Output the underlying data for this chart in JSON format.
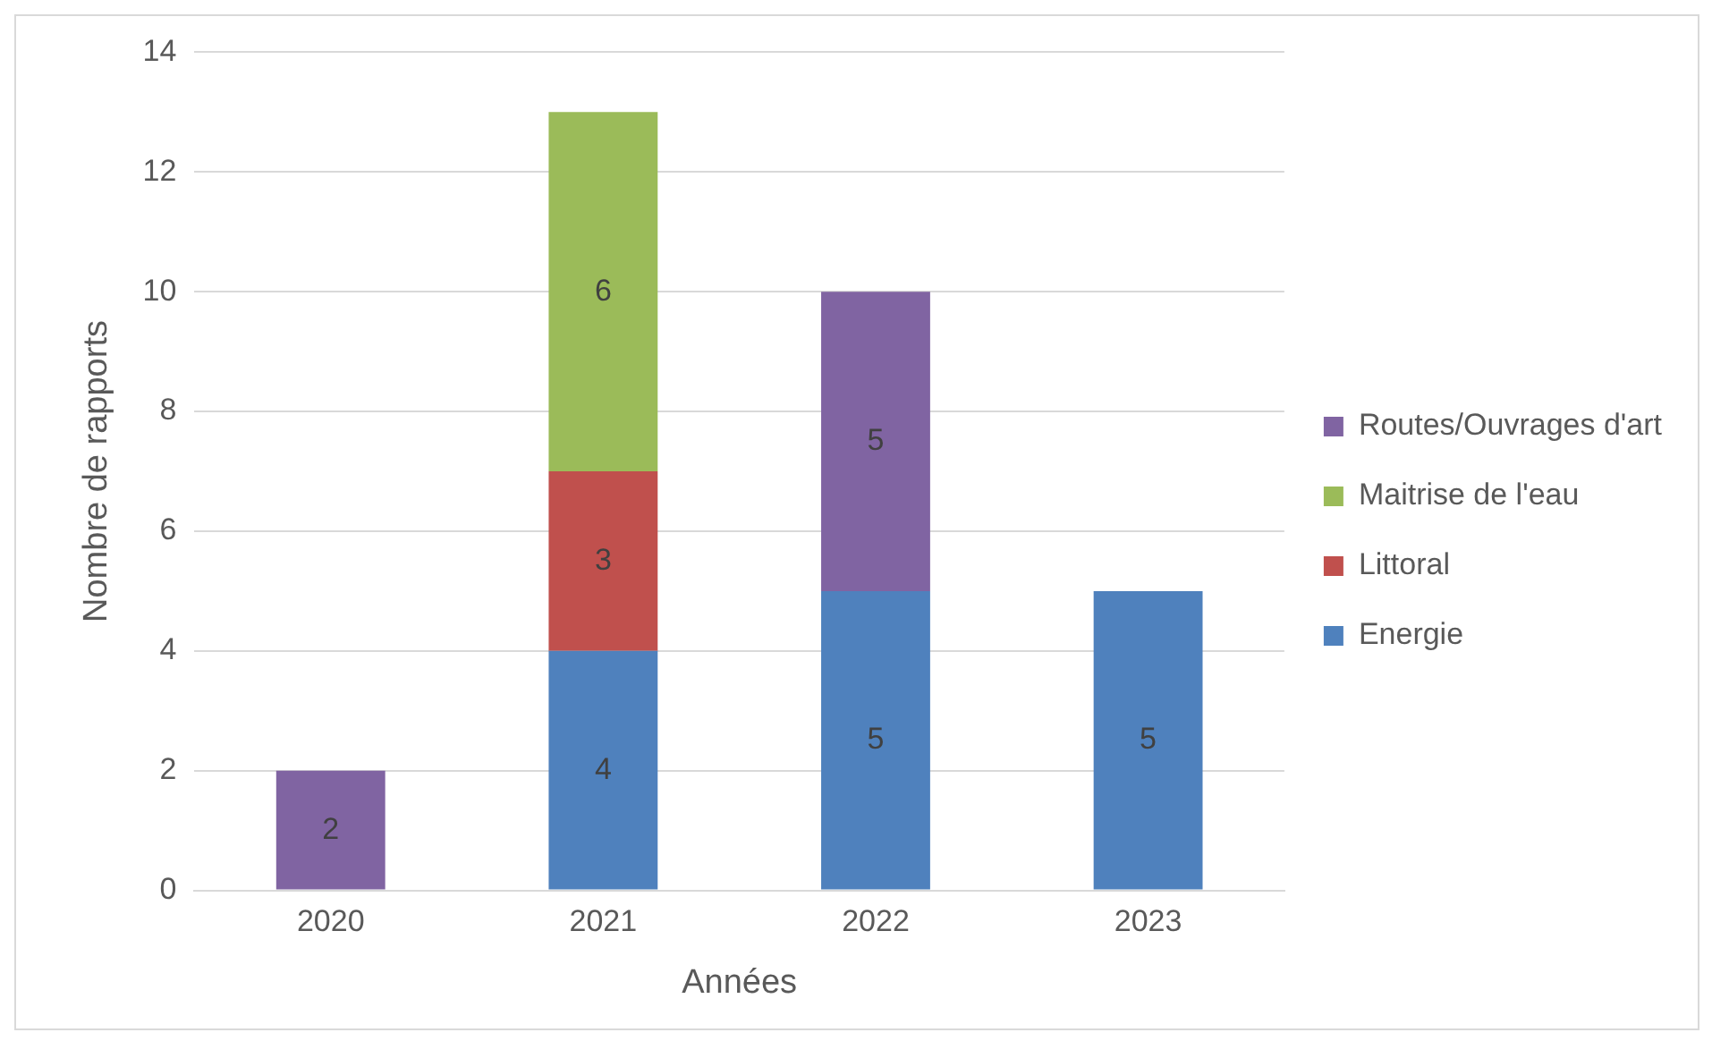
{
  "chart_data": {
    "type": "bar",
    "stacked": true,
    "xlabel": "Années",
    "ylabel": "Nombre de rapports",
    "categories": [
      "2020",
      "2021",
      "2022",
      "2023"
    ],
    "series": [
      {
        "name": "Energie",
        "color": "#4f81bd",
        "values": [
          null,
          4,
          5,
          5
        ]
      },
      {
        "name": "Littoral",
        "color": "#c0504d",
        "values": [
          null,
          3,
          null,
          null
        ]
      },
      {
        "name": "Maitrise de l'eau",
        "color": "#9bbb59",
        "values": [
          null,
          6,
          null,
          null
        ]
      },
      {
        "name": "Routes/Ouvrages d'art",
        "color": "#8064a2",
        "values": [
          2,
          null,
          5,
          null
        ]
      }
    ],
    "ylim": [
      0,
      14
    ],
    "yticks": [
      0,
      2,
      4,
      6,
      8,
      10,
      12,
      14
    ],
    "grid": "y",
    "legend": "right",
    "data_labels": true
  }
}
